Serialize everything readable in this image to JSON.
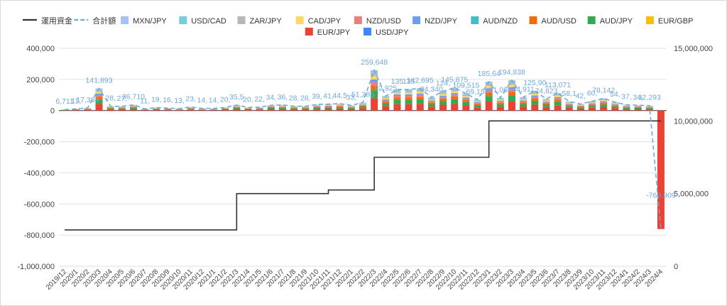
{
  "chart_data": {
    "type": "bar",
    "stacked": true,
    "combo_with_lines": true,
    "legend_position": "top",
    "grid": true,
    "categories": [
      "2019/12",
      "2020/1",
      "2020/2",
      "2020/3",
      "2020/4",
      "2020/5",
      "2020/6",
      "2020/7",
      "2020/8",
      "2020/9",
      "2020/10",
      "2020/11",
      "2020/12",
      "2021/1",
      "2021/2",
      "2021/3",
      "2021/4",
      "2021/5",
      "2021/6",
      "2021/7",
      "2021/8",
      "2021/9",
      "2021/10",
      "2021/11",
      "2021/12",
      "2022/1",
      "2022/2",
      "2022/3",
      "2022/4",
      "2022/5",
      "2022/6",
      "2022/7",
      "2022/8",
      "2022/9",
      "2022/10",
      "2022/11",
      "2022/12",
      "2023/1",
      "2023/2",
      "2023/3",
      "2023/4",
      "2023/5",
      "2023/6",
      "2023/7",
      "2023/8",
      "2023/9",
      "2023/10",
      "2023/11",
      "2023/12",
      "2024/1",
      "2024/2",
      "2024/3",
      "2024/4"
    ],
    "y_left": {
      "ylim": [
        -1000000,
        400000
      ],
      "ticks": [
        -1000000,
        -800000,
        -600000,
        -400000,
        -200000,
        0,
        200000,
        400000
      ],
      "tick_labels": [
        "-1,000,000",
        "-800,000",
        "-600,000",
        "-400,000",
        "-200,000",
        "0",
        "200,000",
        "400,000"
      ]
    },
    "y_right": {
      "ylim": [
        0,
        15000000
      ],
      "ticks": [
        0,
        5000000,
        10000000,
        15000000
      ],
      "tick_labels": [
        "0",
        "5,000,000",
        "10,000,000",
        "15,000,000"
      ]
    },
    "legend": [
      {
        "name": "運用資金",
        "kind": "line",
        "color": "#333333"
      },
      {
        "name": "合計額",
        "kind": "dashed-line",
        "color": "#6fa8dc"
      },
      {
        "name": "MXN/JPY",
        "kind": "bar",
        "color": "#a4c2f4"
      },
      {
        "name": "USD/CAD",
        "kind": "bar",
        "color": "#76cfd8"
      },
      {
        "name": "ZAR/JPY",
        "kind": "bar",
        "color": "#b7b7b7"
      },
      {
        "name": "CAD/JPY",
        "kind": "bar",
        "color": "#ffd966"
      },
      {
        "name": "NZD/USD",
        "kind": "bar",
        "color": "#e88080"
      },
      {
        "name": "NZD/JPY",
        "kind": "bar",
        "color": "#6d9eeb"
      },
      {
        "name": "AUD/NZD",
        "kind": "bar",
        "color": "#46bdc6"
      },
      {
        "name": "AUD/USD",
        "kind": "bar",
        "color": "#f46a0e"
      },
      {
        "name": "AUD/JPY",
        "kind": "bar",
        "color": "#34a853"
      },
      {
        "name": "EUR/GBP",
        "kind": "bar",
        "color": "#fbbc04"
      },
      {
        "name": "EUR/JPY",
        "kind": "bar",
        "color": "#ea4335"
      },
      {
        "name": "USD/JPY",
        "kind": "bar",
        "color": "#4285f4"
      }
    ],
    "total_line": {
      "name": "合計額",
      "values": [
        6711,
        11000,
        17384,
        141893,
        28000,
        27000,
        36710,
        11000,
        19000,
        16000,
        13000,
        23000,
        14000,
        14000,
        20000,
        35500,
        20000,
        22000,
        34000,
        36000,
        28000,
        28000,
        39000,
        41000,
        44500,
        33000,
        51285,
        259648,
        92925,
        135000,
        135000,
        142695,
        84340,
        124000,
        145875,
        109515,
        69155,
        185645,
        81084,
        194838,
        84911,
        125907,
        74823,
        113071,
        58100,
        42000,
        60000,
        78142,
        54000,
        37000,
        34000,
        32293,
        -760909
      ],
      "labels": [
        "6,711",
        "11,",
        "17,384",
        "141,893",
        "28,",
        "27,",
        "36,710",
        "11,",
        "19,",
        "16,",
        "13,",
        "23,",
        "14,",
        "14,",
        "20,",
        "35,5",
        "20,",
        "22,",
        "34,",
        "36,",
        "28,",
        "28,",
        "39,",
        "41,",
        "44,5",
        "33,",
        "51,285",
        "259,648",
        "92,925",
        "135",
        "135",
        "142,695",
        "84,340",
        "124,",
        "145,875",
        "109,515",
        "69,155",
        "185,64",
        "81,084",
        "194,838",
        "84,911",
        "125,90",
        "74,823",
        "113,071",
        "58,1",
        "42,",
        "60,",
        "78,142",
        "54,",
        "37,",
        "34,",
        "32,293",
        "-760,909"
      ]
    },
    "capital_line": {
      "name": "運用資金",
      "values": [
        2500000,
        2500000,
        2500000,
        2500000,
        2500000,
        2500000,
        2500000,
        2500000,
        2500000,
        2500000,
        2500000,
        2500000,
        2500000,
        2500000,
        2500000,
        5000000,
        5000000,
        5000000,
        5000000,
        5000000,
        5000000,
        5000000,
        5000000,
        5250000,
        5250000,
        5250000,
        5250000,
        7500000,
        7500000,
        7500000,
        7500000,
        7500000,
        7500000,
        7500000,
        7500000,
        7500000,
        7500000,
        10000000,
        10000000,
        10000000,
        10000000,
        10000000,
        10000000,
        10000000,
        10000000,
        10000000,
        10000000,
        10000000,
        10000000,
        10000000,
        10000000,
        10000000,
        10000000
      ]
    }
  }
}
